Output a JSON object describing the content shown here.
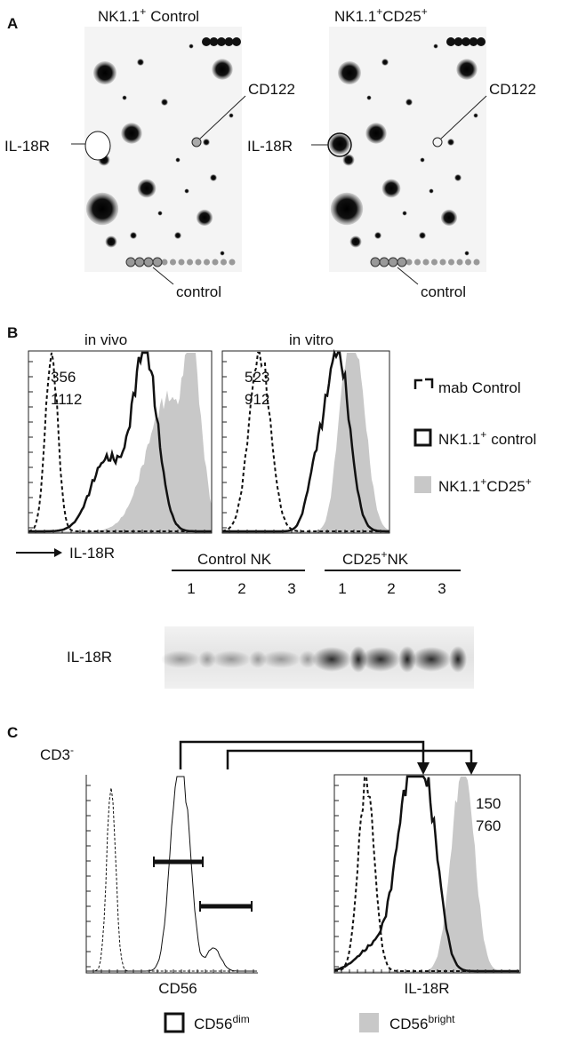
{
  "panel_labels": [
    "A",
    "B",
    "C"
  ],
  "panel_a": {
    "arrays": [
      {
        "title": [
          {
            "t": "NK1.1"
          },
          {
            "t": "+",
            "sup": true
          },
          {
            "t": "Control"
          }
        ],
        "cd122": "CD122",
        "il18r": "IL-18R",
        "control": "control"
      },
      {
        "title": [
          {
            "t": "NK1.1"
          },
          {
            "t": "+",
            "sup": true
          },
          {
            "t": "CD25"
          },
          {
            "t": "+",
            "sup": true
          }
        ],
        "cd122": "CD122",
        "il18r": "IL-18R",
        "control": "control"
      }
    ]
  },
  "panel_b": {
    "plot_titles": [
      "in vivo",
      "in vitro"
    ],
    "mfi": [
      {
        "black": 356,
        "gray": 1112
      },
      {
        "black": 523,
        "gray": 912
      }
    ],
    "legend": [
      [
        {
          "t": "mab Control"
        }
      ],
      [
        {
          "t": "NK1.1"
        },
        {
          "t": "+",
          "sup": true
        },
        {
          "t": "control"
        }
      ],
      [
        {
          "t": "NK1.1"
        },
        {
          "t": "+",
          "sup": true
        },
        {
          "t": "CD25"
        },
        {
          "t": "+",
          "sup": true
        }
      ]
    ],
    "axis_label": "IL-18R",
    "western": {
      "groups": [
        [
          {
            "t": "Control NK"
          }
        ],
        [
          {
            "t": "CD25"
          },
          {
            "t": "+",
            "sup": true
          },
          {
            "t": "NK"
          }
        ]
      ],
      "lanes": [
        1,
        2,
        3,
        1,
        2,
        3
      ],
      "row_label": "IL-18R"
    }
  },
  "panel_c": {
    "gate_label": [
      {
        "t": "CD3"
      },
      {
        "t": "-",
        "sup": true
      }
    ],
    "x_labels": [
      "CD56",
      "IL-18R"
    ],
    "mfi": {
      "black": 150,
      "gray": 760
    },
    "legend": [
      [
        {
          "t": "CD56"
        },
        {
          "t": "dim",
          "sup": true
        }
      ],
      [
        {
          "t": "CD56"
        },
        {
          "t": "bright",
          "sup": true
        }
      ]
    ]
  }
}
